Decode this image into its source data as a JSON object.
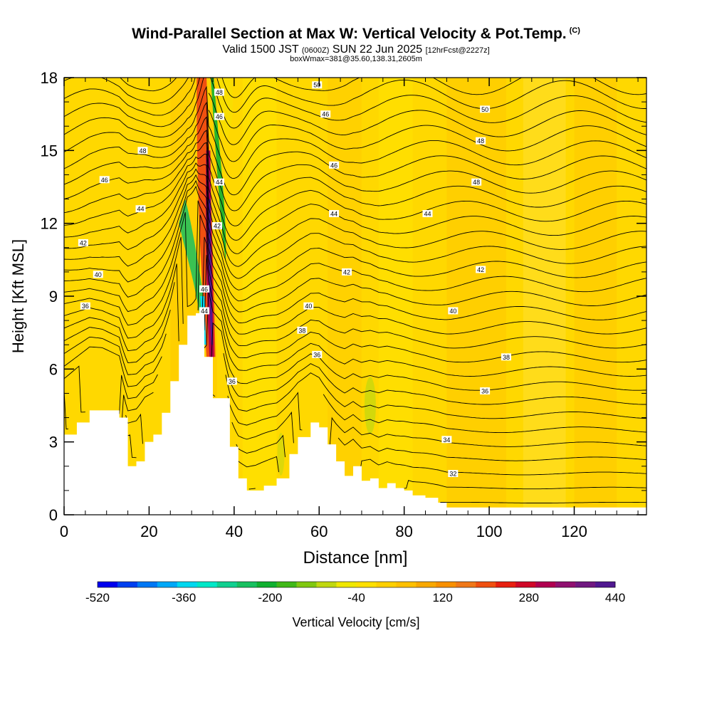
{
  "titles": {
    "main": "Wind-Parallel Section at Max W: Vertical Velocity & Pot.Temp.",
    "copyright": "(C)",
    "valid_prefix": "Valid 1500 JST",
    "valid_utc": "(0600Z)",
    "valid_date": "SUN 22 Jun 2025",
    "forecast": "[12hrFcst@2227z]",
    "box_info": "boxWmax=381@35.60,138.31,2605m"
  },
  "chart_data": {
    "type": "heatmap",
    "xlabel": "Distance [nm]",
    "ylabel": "Height [Kft MSL]",
    "xlim": [
      0,
      137
    ],
    "ylim": [
      0,
      18
    ],
    "x_ticks": [
      "0",
      "20",
      "40",
      "60",
      "80",
      "100",
      "120"
    ],
    "y_ticks": [
      "0",
      "3",
      "6",
      "9",
      "12",
      "15",
      "18"
    ],
    "colorbar": {
      "label": "Vertical Velocity [cm/s]",
      "tick_labels": [
        "-520",
        "-360",
        "-200",
        "-40",
        "120",
        "280",
        "440"
      ],
      "levels": [
        -520,
        440
      ],
      "colors": [
        "#0000ee",
        "#0040f0",
        "#0078f5",
        "#00a8f8",
        "#00d8f0",
        "#00e8c8",
        "#10d090",
        "#18c060",
        "#10b030",
        "#40b818",
        "#80c810",
        "#c0d810",
        "#f0e800",
        "#ffe000",
        "#ffd000",
        "#ffc000",
        "#f8a800",
        "#f89000",
        "#f07818",
        "#f05010",
        "#e82010",
        "#d00828",
        "#b00050",
        "#901070",
        "#701880",
        "#501890"
      ]
    },
    "potential_temperature_contour_labels": [
      "32",
      "34",
      "36",
      "38",
      "40",
      "42",
      "44",
      "46",
      "48",
      "50"
    ],
    "terrain_height_kft": {
      "x": [
        0,
        3,
        6,
        9,
        13,
        15,
        17,
        19,
        21,
        23,
        25,
        27,
        29,
        31,
        33,
        35,
        37,
        39,
        41,
        43,
        45,
        47,
        50,
        53,
        55,
        58,
        60,
        62,
        64,
        66,
        68,
        70,
        72,
        74,
        76,
        78,
        80,
        82,
        85,
        88,
        90,
        95,
        100,
        110,
        120,
        137
      ],
      "y": [
        3.3,
        3.8,
        4.3,
        4.3,
        4.0,
        2.0,
        2.2,
        3.0,
        3.3,
        4.2,
        5.5,
        7.0,
        8.2,
        8.3,
        6.5,
        4.8,
        4.8,
        2.8,
        1.5,
        1.0,
        1.0,
        1.2,
        1.5,
        2.5,
        3.2,
        3.8,
        3.6,
        2.9,
        2.2,
        1.6,
        2.0,
        1.4,
        1.5,
        1.1,
        1.3,
        1.1,
        1.0,
        0.8,
        0.7,
        0.5,
        0.3,
        0.3,
        0.3,
        0.3,
        0.3,
        0.3
      ]
    }
  }
}
